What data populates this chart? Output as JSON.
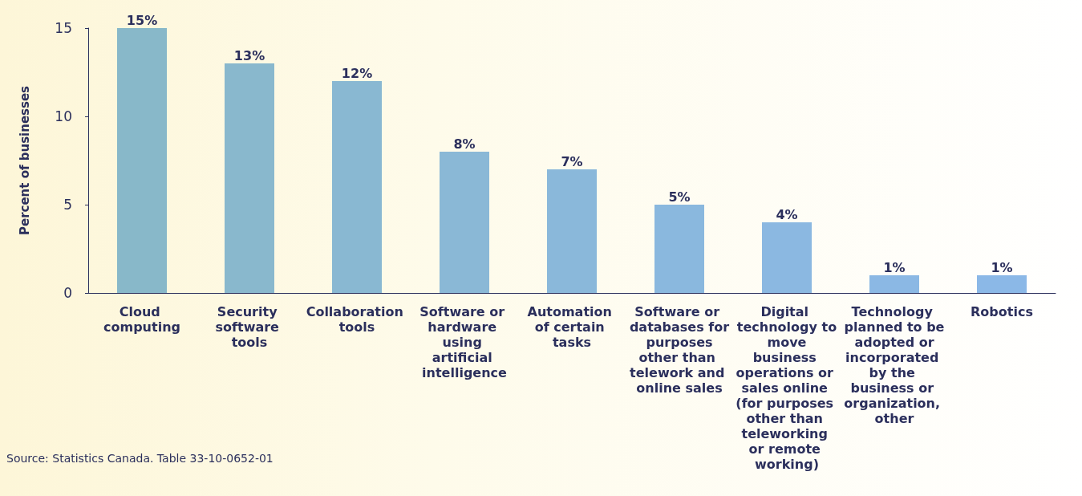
{
  "chart_data": {
    "type": "bar",
    "ylabel": "Percent of businesses",
    "categories": [
      "Cloud computing",
      "Security software tools",
      "Collaboration tools",
      "Software or hardware using artificial intelligence",
      "Automation of certain tasks",
      "Software or databases for purposes other than telework and online sales",
      "Digital technology to move business operations or sales online (for purposes other than teleworking or remote working)",
      "Technology planned to be adopted or incorporated by the business or organization, other",
      "Robotics"
    ],
    "values": [
      15,
      13,
      12,
      8,
      7,
      5,
      4,
      1,
      1
    ],
    "value_labels": [
      "15%",
      "13%",
      "12%",
      "8%",
      "7%",
      "5%",
      "4%",
      "1%",
      "1%"
    ],
    "colors": [
      "#88b8c9",
      "#89b8cd",
      "#89b8d2",
      "#8ab8d6",
      "#8ab8da",
      "#8ab8de",
      "#8bb8e1",
      "#8bb8e4",
      "#8bb8e7"
    ],
    "ylim": [
      0,
      15
    ],
    "yticks": [
      0,
      5,
      10,
      15
    ],
    "grid": false,
    "annotations": [
      "Source: Statistics Canada. Table 33-10-0652-01"
    ]
  }
}
